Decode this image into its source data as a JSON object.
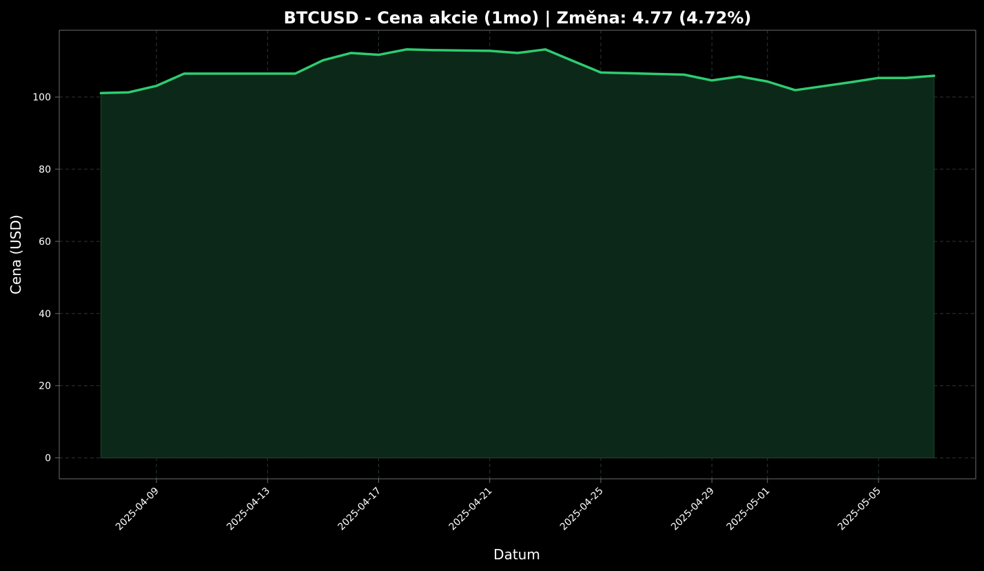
{
  "chart_data": {
    "type": "area",
    "title": "BTCUSD - Cena akcie (1mo) | Změna: 4.77 (4.72%)",
    "xlabel": "Datum",
    "ylabel": "Cena (USD)",
    "ylim": [
      -5.8,
      118.5
    ],
    "yticks": [
      0,
      20,
      40,
      60,
      80,
      100
    ],
    "xlim": [
      "2025-04-05T12:00",
      "2025-05-08T12:00"
    ],
    "xticks": [
      "2025-04-09",
      "2025-04-13",
      "2025-04-17",
      "2025-04-21",
      "2025-04-25",
      "2025-04-29",
      "2025-05-01",
      "2025-05-05"
    ],
    "grid": true,
    "colors": {
      "background": "#000000",
      "line": "#2ecc71",
      "fill": "#0c2819",
      "grid": "#2a3a2f",
      "text": "#ffffff",
      "spine": "#6e6e6e"
    },
    "x": [
      "2025-04-07",
      "2025-04-08",
      "2025-04-09",
      "2025-04-10",
      "2025-04-11",
      "2025-04-12",
      "2025-04-13",
      "2025-04-14",
      "2025-04-15",
      "2025-04-16",
      "2025-04-17",
      "2025-04-18",
      "2025-04-19",
      "2025-04-20",
      "2025-04-21",
      "2025-04-22",
      "2025-04-23",
      "2025-04-24",
      "2025-04-25",
      "2025-04-26",
      "2025-04-27",
      "2025-04-28",
      "2025-04-29",
      "2025-04-30",
      "2025-05-01",
      "2025-05-02",
      "2025-05-03",
      "2025-05-04",
      "2025-05-05",
      "2025-05-06",
      "2025-05-07"
    ],
    "values": [
      101.1,
      101.3,
      103.1,
      106.5,
      106.5,
      106.5,
      106.5,
      106.5,
      110.2,
      112.2,
      111.7,
      113.2,
      113.0,
      112.9,
      112.8,
      112.2,
      113.2,
      110.0,
      106.8,
      106.6,
      106.4,
      106.2,
      104.6,
      105.7,
      104.3,
      101.9,
      103.0,
      104.1,
      105.3,
      105.3,
      105.9
    ]
  }
}
